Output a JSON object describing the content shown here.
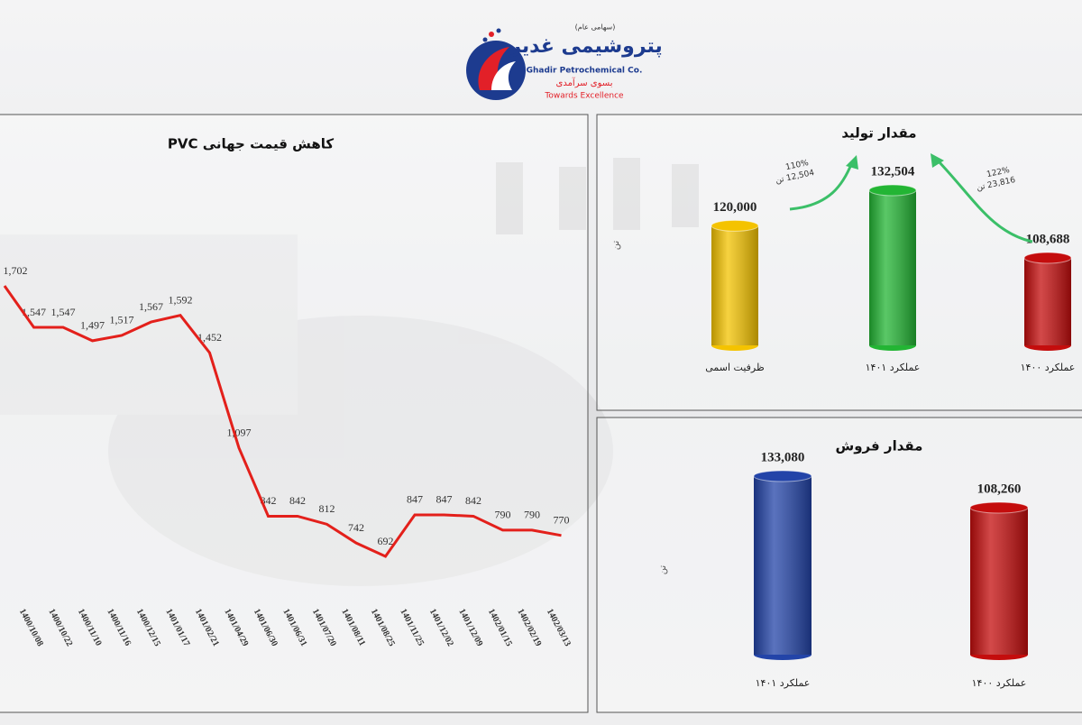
{
  "header": {
    "logo_text": "پتروشیمی غدیر",
    "company_type": "(سهامی عام)",
    "company_en": "Ghadir Petrochemical Co.",
    "slogan_fa": "بسوی سرآمدی",
    "slogan_en": "Towards Excellence"
  },
  "chart_data": [
    {
      "type": "line",
      "title": "کاهش قیمت جهانی PVC",
      "color": "#e3201b",
      "categories": [
        null,
        "1400/10/08",
        "1400/10/22",
        "1400/11/10",
        "1400/11/16",
        "1400/12/15",
        "1401/01/17",
        "1401/02/21",
        "1401/04/29",
        "1401/06/30",
        "1401/06/31",
        "1401/07/20",
        "1401/08/11",
        "1401/08/25",
        "1401/11/25",
        "1401/12/02",
        "1401/12/09",
        "1402/01/15",
        "1402/02/19",
        "1402/03/13"
      ],
      "values": [
        1702,
        1547,
        1547,
        1497,
        1517,
        1567,
        1592,
        1452,
        1097,
        842,
        842,
        812,
        742,
        692,
        847,
        847,
        842,
        790,
        790,
        770
      ],
      "value_labels": [
        "1,702",
        "1,547",
        "1,547",
        "1,497",
        "1,517",
        "1,567",
        "1,592",
        "1,452",
        "1,097",
        "842",
        "842",
        "812",
        "742",
        "692",
        "847",
        "847",
        "842",
        "790",
        "790",
        "770"
      ]
    },
    {
      "type": "bar",
      "title": "مقدار تولید",
      "unit": "تن",
      "categories": [
        "ظرفیت اسمی",
        "عملکرد ۱۴۰۱",
        "عملکرد ۱۴۰۰"
      ],
      "values": [
        120000,
        132504,
        108688
      ],
      "value_labels": [
        "120,000",
        "132,504",
        "108,688"
      ],
      "colors": [
        "#f4c300",
        "#23b534",
        "#c40d0d"
      ],
      "annotations": [
        {
          "percent": "110%",
          "amount": "12,504 تن"
        },
        {
          "percent": "122%",
          "amount": "23,816 تن"
        }
      ]
    },
    {
      "type": "bar",
      "title": "مقدار فروش",
      "unit": "تن",
      "categories": [
        "عملکرد ۱۴۰۱",
        "عملکرد ۱۴۰۰"
      ],
      "values": [
        133080,
        108260
      ],
      "value_labels": [
        "133,080",
        "108,260"
      ],
      "colors": [
        "#2344a8",
        "#c40d0d"
      ]
    }
  ]
}
